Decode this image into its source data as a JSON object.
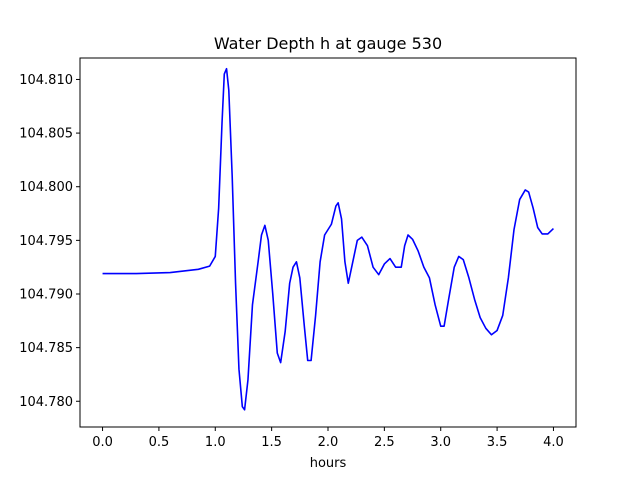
{
  "chart_data": {
    "type": "line",
    "title": "Water Depth h at gauge 530",
    "xlabel": "hours",
    "ylabel": "",
    "xlim": [
      -0.2,
      4.2
    ],
    "ylim": [
      104.7776,
      104.812
    ],
    "xticks": [
      0.0,
      0.5,
      1.0,
      1.5,
      2.0,
      2.5,
      3.0,
      3.5,
      4.0
    ],
    "xtick_labels": [
      "0.0",
      "0.5",
      "1.0",
      "1.5",
      "2.0",
      "2.5",
      "3.0",
      "3.5",
      "4.0"
    ],
    "yticks": [
      104.78,
      104.785,
      104.79,
      104.795,
      104.8,
      104.805,
      104.81
    ],
    "ytick_labels": [
      "104.780",
      "104.785",
      "104.790",
      "104.795",
      "104.800",
      "104.805",
      "104.810"
    ],
    "grid": false,
    "series": [
      {
        "color": "#0000ff",
        "points": [
          [
            0.0,
            104.7919
          ],
          [
            0.3,
            104.7919
          ],
          [
            0.6,
            104.792
          ],
          [
            0.85,
            104.7923
          ],
          [
            0.95,
            104.7926
          ],
          [
            1.0,
            104.7935
          ],
          [
            1.03,
            104.798
          ],
          [
            1.06,
            104.806
          ],
          [
            1.08,
            104.8105
          ],
          [
            1.1,
            104.811
          ],
          [
            1.12,
            104.809
          ],
          [
            1.15,
            104.801
          ],
          [
            1.18,
            104.791
          ],
          [
            1.21,
            104.783
          ],
          [
            1.24,
            104.7795
          ],
          [
            1.26,
            104.7792
          ],
          [
            1.29,
            104.782
          ],
          [
            1.33,
            104.789
          ],
          [
            1.38,
            104.793
          ],
          [
            1.41,
            104.7955
          ],
          [
            1.44,
            104.7964
          ],
          [
            1.47,
            104.795
          ],
          [
            1.51,
            104.79
          ],
          [
            1.55,
            104.7845
          ],
          [
            1.58,
            104.7836
          ],
          [
            1.62,
            104.7865
          ],
          [
            1.66,
            104.791
          ],
          [
            1.69,
            104.7925
          ],
          [
            1.72,
            104.793
          ],
          [
            1.75,
            104.7915
          ],
          [
            1.79,
            104.787
          ],
          [
            1.82,
            104.7838
          ],
          [
            1.85,
            104.7838
          ],
          [
            1.89,
            104.788
          ],
          [
            1.93,
            104.793
          ],
          [
            1.97,
            104.7955
          ],
          [
            2.0,
            104.796
          ],
          [
            2.03,
            104.7965
          ],
          [
            2.07,
            104.7982
          ],
          [
            2.09,
            104.7985
          ],
          [
            2.12,
            104.797
          ],
          [
            2.15,
            104.793
          ],
          [
            2.18,
            104.791
          ],
          [
            2.22,
            104.793
          ],
          [
            2.26,
            104.795
          ],
          [
            2.3,
            104.7953
          ],
          [
            2.35,
            104.7945
          ],
          [
            2.4,
            104.7925
          ],
          [
            2.45,
            104.7918
          ],
          [
            2.5,
            104.7928
          ],
          [
            2.55,
            104.7933
          ],
          [
            2.6,
            104.7925
          ],
          [
            2.65,
            104.7925
          ],
          [
            2.68,
            104.7945
          ],
          [
            2.71,
            104.7955
          ],
          [
            2.75,
            104.7951
          ],
          [
            2.8,
            104.794
          ],
          [
            2.85,
            104.7925
          ],
          [
            2.9,
            104.7915
          ],
          [
            2.95,
            104.789
          ],
          [
            3.0,
            104.787
          ],
          [
            3.03,
            104.787
          ],
          [
            3.07,
            104.7895
          ],
          [
            3.12,
            104.7925
          ],
          [
            3.16,
            104.7935
          ],
          [
            3.2,
            104.7932
          ],
          [
            3.25,
            104.7915
          ],
          [
            3.3,
            104.7895
          ],
          [
            3.35,
            104.7878
          ],
          [
            3.4,
            104.7868
          ],
          [
            3.45,
            104.7862
          ],
          [
            3.5,
            104.7866
          ],
          [
            3.55,
            104.788
          ],
          [
            3.6,
            104.7915
          ],
          [
            3.65,
            104.796
          ],
          [
            3.7,
            104.7988
          ],
          [
            3.75,
            104.7997
          ],
          [
            3.78,
            104.7995
          ],
          [
            3.82,
            104.798
          ],
          [
            3.86,
            104.7962
          ],
          [
            3.9,
            104.7956
          ],
          [
            3.95,
            104.7956
          ],
          [
            4.0,
            104.7961
          ]
        ]
      }
    ]
  }
}
